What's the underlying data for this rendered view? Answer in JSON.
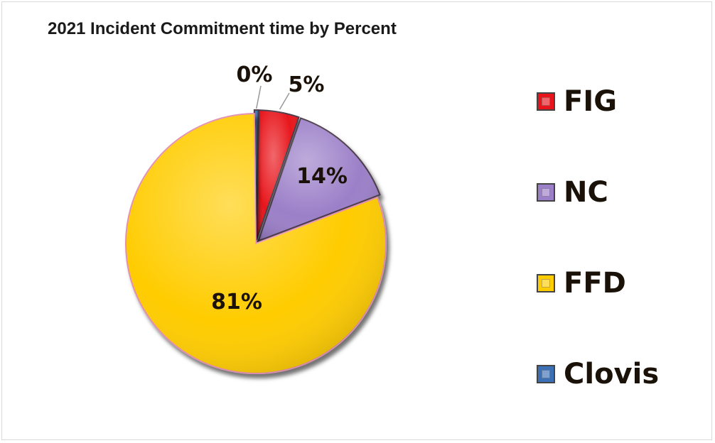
{
  "chart_data": {
    "type": "pie",
    "title": "2021 Incident Commitment time by Percent",
    "slices": [
      {
        "name": "Clovis",
        "value": 0.5,
        "label": "0%",
        "color": "#3b6fb6"
      },
      {
        "name": "FIG",
        "value": 5,
        "label": "5%",
        "color": "#e8141c"
      },
      {
        "name": "NC",
        "value": 14,
        "label": "14%",
        "color": "#9b7fc8"
      },
      {
        "name": "FFD",
        "value": 81,
        "label": "81%",
        "color": "#ffcc00"
      }
    ],
    "legend": {
      "position": "right",
      "items": [
        {
          "name": "FIG",
          "color": "#e8141c"
        },
        {
          "name": "NC",
          "color": "#9b7fc8"
        },
        {
          "name": "FFD",
          "color": "#ffcc00"
        },
        {
          "name": "Clovis",
          "color": "#3b6fb6"
        }
      ]
    }
  }
}
